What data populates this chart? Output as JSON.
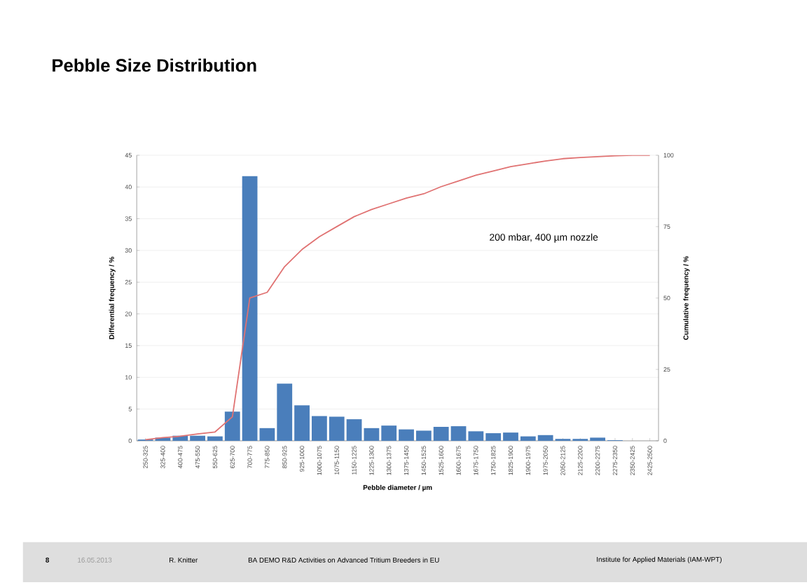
{
  "chart_data": {
    "type": "bar",
    "title": "Pebble Size Distribution",
    "xlabel": "Pebble diameter / µm",
    "ylabel": "Differential frequency / %",
    "y2label": "Cumulative frequency / %",
    "categories": [
      "250-325",
      "325-400",
      "400-475",
      "475-550",
      "550-625",
      "625-700",
      "700-775",
      "775-850",
      "850-925",
      "925-1000",
      "1000-1075",
      "1075-1150",
      "1150-1225",
      "1225-1300",
      "1300-1375",
      "1375-1450",
      "1450-1525",
      "1525-1600",
      "1600-1675",
      "1675-1750",
      "1750-1825",
      "1825-1900",
      "1900-1975",
      "1975-2050",
      "2050-2125",
      "2125-2200",
      "2200-2275",
      "2275-2350",
      "2350-2425",
      "2425-2500"
    ],
    "series": [
      {
        "color": "#4a7ebb",
        "values": [
          0.2,
          0.5,
          0.8,
          0.8,
          0.7,
          4.6,
          41.7,
          2.0,
          9.0,
          5.6,
          3.9,
          3.8,
          3.4,
          2.0,
          2.4,
          1.8,
          1.6,
          2.2,
          2.3,
          1.5,
          1.2,
          1.3,
          0.7,
          0.9,
          0.3,
          0.3,
          0.5,
          0.1,
          0,
          0
        ]
      },
      {
        "type": "line",
        "axis": "y2",
        "color": "#e07272",
        "values": [
          0.4,
          1.1,
          1.6,
          2.4,
          3.1,
          8.4,
          50,
          52,
          61,
          67,
          71.5,
          75,
          78.5,
          81,
          83,
          85,
          86.5,
          89,
          91,
          93,
          94.5,
          96,
          97,
          98,
          98.8,
          99.2,
          99.5,
          99.8,
          100,
          100
        ]
      }
    ],
    "ylim": [
      0,
      45
    ],
    "yticks": [
      0,
      5,
      10,
      15,
      20,
      25,
      30,
      35,
      40,
      45
    ],
    "y2lim": [
      0,
      100
    ],
    "y2ticks": [
      0,
      25,
      50,
      75,
      100
    ],
    "grid": "y",
    "annotations": [
      "200 mbar, 400 µm nozzle",
      "8",
      "16.05.2013",
      "R. Knitter",
      "BA DEMO R&D Activities on Advanced Tritium Breeders in EU",
      "Institute for Applied Materials (IAM-WPT)"
    ]
  }
}
